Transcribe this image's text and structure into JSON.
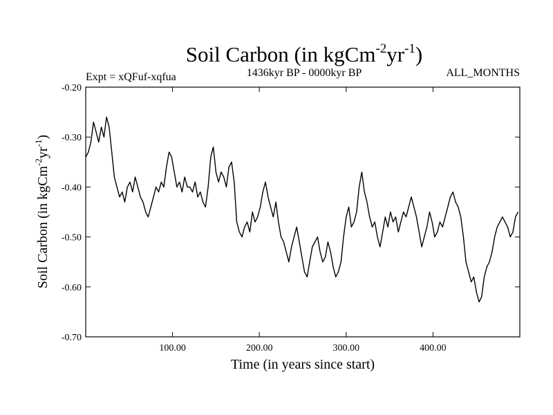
{
  "chart_data": {
    "type": "line",
    "title": {
      "main": "Soil Carbon (in kgCm",
      "sup1": "-2",
      "mid": "yr",
      "sup2": "-1",
      "end": ")"
    },
    "subtitle_left": "Expt = xQFuf-xqfua",
    "subtitle_center": "1436kyr BP - 0000kyr BP",
    "subtitle_right": "ALL_MONTHS",
    "xlabel": "Time (in years since start)",
    "ylabel": {
      "main": "Soil Carbon (in kgCm",
      "sup1": "-2",
      "mid": "yr",
      "sup2": "-1",
      "end": ")"
    },
    "xlim": [
      0,
      500
    ],
    "ylim": [
      -0.7,
      -0.2
    ],
    "xticks": [
      {
        "value": 100,
        "label": "100.00"
      },
      {
        "value": 200,
        "label": "200.00"
      },
      {
        "value": 300,
        "label": "300.00"
      },
      {
        "value": 400,
        "label": "400.00"
      }
    ],
    "yticks": [
      {
        "value": -0.2,
        "label": "-0.20"
      },
      {
        "value": -0.3,
        "label": "-0.30"
      },
      {
        "value": -0.4,
        "label": "-0.40"
      },
      {
        "value": -0.5,
        "label": "-0.50"
      },
      {
        "value": -0.6,
        "label": "-0.60"
      },
      {
        "value": -0.7,
        "label": "-0.70"
      }
    ],
    "series": [
      {
        "name": "Soil Carbon",
        "color": "#000000",
        "x": [
          0,
          3,
          6,
          9,
          12,
          15,
          18,
          21,
          24,
          27,
          30,
          33,
          36,
          39,
          42,
          45,
          48,
          51,
          54,
          57,
          60,
          63,
          66,
          69,
          72,
          75,
          78,
          81,
          84,
          87,
          90,
          93,
          96,
          99,
          102,
          105,
          108,
          111,
          114,
          117,
          120,
          123,
          126,
          129,
          132,
          135,
          138,
          141,
          144,
          147,
          150,
          153,
          156,
          159,
          162,
          165,
          168,
          171,
          174,
          177,
          180,
          183,
          186,
          189,
          192,
          195,
          198,
          201,
          204,
          207,
          210,
          213,
          216,
          219,
          222,
          225,
          228,
          231,
          234,
          237,
          240,
          243,
          246,
          249,
          252,
          255,
          258,
          261,
          264,
          267,
          270,
          273,
          276,
          279,
          282,
          285,
          288,
          291,
          294,
          297,
          300,
          303,
          306,
          309,
          312,
          315,
          318,
          321,
          324,
          327,
          330,
          333,
          336,
          339,
          342,
          345,
          348,
          351,
          354,
          357,
          360,
          363,
          366,
          369,
          372,
          375,
          378,
          381,
          384,
          387,
          390,
          393,
          396,
          399,
          402,
          405,
          408,
          411,
          414,
          417,
          420,
          423,
          426,
          429,
          432,
          435,
          438,
          441,
          444,
          447,
          450,
          453,
          456,
          459,
          462,
          465,
          468,
          471,
          474,
          477,
          480,
          483,
          486,
          489,
          492,
          495,
          498
        ],
        "values": [
          -0.34,
          -0.33,
          -0.31,
          -0.27,
          -0.29,
          -0.31,
          -0.28,
          -0.3,
          -0.26,
          -0.28,
          -0.33,
          -0.38,
          -0.4,
          -0.42,
          -0.41,
          -0.43,
          -0.4,
          -0.39,
          -0.41,
          -0.38,
          -0.4,
          -0.42,
          -0.43,
          -0.45,
          -0.46,
          -0.44,
          -0.42,
          -0.4,
          -0.41,
          -0.39,
          -0.4,
          -0.36,
          -0.33,
          -0.34,
          -0.37,
          -0.4,
          -0.39,
          -0.41,
          -0.38,
          -0.4,
          -0.4,
          -0.41,
          -0.39,
          -0.42,
          -0.41,
          -0.43,
          -0.44,
          -0.4,
          -0.34,
          -0.32,
          -0.37,
          -0.39,
          -0.37,
          -0.38,
          -0.4,
          -0.36,
          -0.35,
          -0.39,
          -0.47,
          -0.49,
          -0.5,
          -0.48,
          -0.47,
          -0.49,
          -0.45,
          -0.47,
          -0.46,
          -0.44,
          -0.41,
          -0.39,
          -0.42,
          -0.44,
          -0.46,
          -0.43,
          -0.47,
          -0.5,
          -0.51,
          -0.53,
          -0.55,
          -0.52,
          -0.5,
          -0.48,
          -0.51,
          -0.54,
          -0.57,
          -0.58,
          -0.55,
          -0.52,
          -0.51,
          -0.5,
          -0.53,
          -0.55,
          -0.54,
          -0.51,
          -0.53,
          -0.56,
          -0.58,
          -0.57,
          -0.55,
          -0.5,
          -0.46,
          -0.44,
          -0.48,
          -0.47,
          -0.45,
          -0.4,
          -0.37,
          -0.41,
          -0.43,
          -0.46,
          -0.48,
          -0.47,
          -0.5,
          -0.52,
          -0.49,
          -0.46,
          -0.48,
          -0.45,
          -0.47,
          -0.46,
          -0.49,
          -0.47,
          -0.45,
          -0.46,
          -0.44,
          -0.42,
          -0.44,
          -0.46,
          -0.49,
          -0.52,
          -0.5,
          -0.48,
          -0.45,
          -0.47,
          -0.5,
          -0.49,
          -0.47,
          -0.48,
          -0.46,
          -0.44,
          -0.42,
          -0.41,
          -0.43,
          -0.44,
          -0.46,
          -0.5,
          -0.55,
          -0.57,
          -0.59,
          -0.58,
          -0.61,
          -0.63,
          -0.62,
          -0.58,
          -0.56,
          -0.55,
          -0.53,
          -0.5,
          -0.48,
          -0.47,
          -0.46,
          -0.47,
          -0.48,
          -0.5,
          -0.49,
          -0.46,
          -0.45
        ]
      }
    ]
  }
}
